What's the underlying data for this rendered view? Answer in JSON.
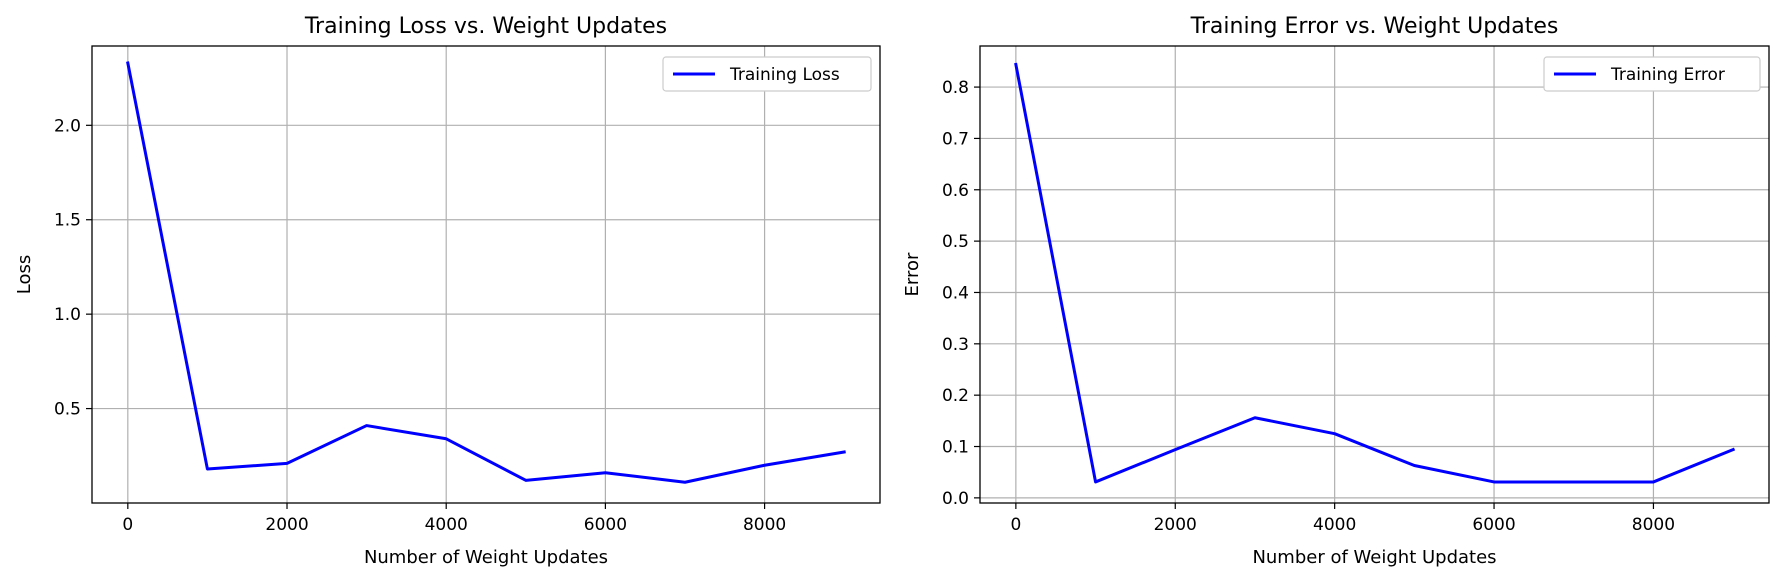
{
  "chart_data": [
    {
      "type": "line",
      "title": "Training Loss vs. Weight Updates",
      "xlabel": "Number of Weight Updates",
      "ylabel": "Loss",
      "xlim": [
        -450,
        9450
      ],
      "ylim": [
        0.0,
        2.42
      ],
      "xticks": [
        0,
        2000,
        4000,
        6000,
        8000
      ],
      "xtick_labels": [
        "0",
        "2000",
        "4000",
        "6000",
        "8000"
      ],
      "yticks": [
        0.5,
        1.0,
        1.5,
        2.0
      ],
      "ytick_labels": [
        "0.5",
        "1.0",
        "1.5",
        "2.0"
      ],
      "grid": true,
      "legend_position": "top-right",
      "x": [
        0,
        1000,
        2000,
        3000,
        4000,
        5000,
        6000,
        7000,
        8000,
        9000
      ],
      "series": [
        {
          "name": "Training Loss",
          "color": "#0000ff",
          "values": [
            2.33,
            0.18,
            0.21,
            0.41,
            0.34,
            0.12,
            0.16,
            0.11,
            0.2,
            0.27
          ]
        }
      ]
    },
    {
      "type": "line",
      "title": "Training Error vs. Weight Updates",
      "xlabel": "Number of Weight Updates",
      "ylabel": "Error",
      "xlim": [
        -450,
        9450
      ],
      "ylim": [
        -0.01,
        0.88
      ],
      "xticks": [
        0,
        2000,
        4000,
        6000,
        8000
      ],
      "xtick_labels": [
        "0",
        "2000",
        "4000",
        "6000",
        "8000"
      ],
      "yticks": [
        0.0,
        0.1,
        0.2,
        0.3,
        0.4,
        0.5,
        0.6,
        0.7,
        0.8
      ],
      "ytick_labels": [
        "0.0",
        "0.1",
        "0.2",
        "0.3",
        "0.4",
        "0.5",
        "0.6",
        "0.7",
        "0.8"
      ],
      "grid": true,
      "legend_position": "top-right",
      "x": [
        0,
        1000,
        2000,
        3000,
        4000,
        5000,
        6000,
        7000,
        8000,
        9000
      ],
      "series": [
        {
          "name": "Training Error",
          "color": "#0000ff",
          "values": [
            0.844,
            0.031,
            0.094,
            0.156,
            0.125,
            0.063,
            0.031,
            0.031,
            0.031,
            0.094
          ]
        }
      ]
    }
  ]
}
